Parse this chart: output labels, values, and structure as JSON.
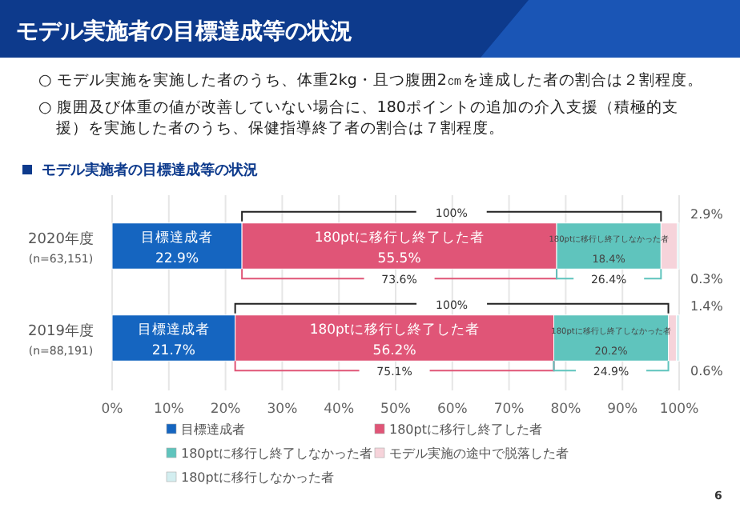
{
  "chart_data": {
    "type": "bar",
    "orientation": "horizontal",
    "stacked": true,
    "title": "モデル実施者の目標達成等の状況",
    "subtitle": "モデル実施者の目標達成等の状況",
    "categories": [
      "2020年度\n(n=63,151)",
      "2019年度\n(n=88,191)"
    ],
    "series": [
      {
        "name": "目標達成者",
        "color": "#1565c0",
        "values": [
          22.9,
          21.7
        ],
        "value_labels": [
          "22.9%",
          "21.7%"
        ]
      },
      {
        "name": "180ptに移行し終了した者",
        "color": "#e05577",
        "values": [
          55.5,
          56.2
        ],
        "value_labels": [
          "55.5%",
          "56.2%"
        ]
      },
      {
        "name": "180ptに移行し終了しなかった者",
        "color": "#5fc4bd",
        "values": [
          18.4,
          20.2
        ],
        "value_labels": [
          "18.4%",
          "20.2%"
        ]
      },
      {
        "name": "モデル実施の途中で脱落した者",
        "color": "#f6d3da",
        "values": [
          2.9,
          1.4
        ],
        "value_labels": [
          "2.9%",
          "1.4%"
        ]
      },
      {
        "name": "180ptに移行しなかった者",
        "color": "#d3eef0",
        "values": [
          0.3,
          0.6
        ],
        "value_labels": [
          "0.3%",
          "0.6%"
        ]
      }
    ],
    "xlim": [
      0,
      100
    ],
    "xticks": [
      {
        "value": 0,
        "label": "0%"
      },
      {
        "value": 10,
        "label": "10%"
      },
      {
        "value": 20,
        "label": "20%"
      },
      {
        "value": 30,
        "label": "30%"
      },
      {
        "value": 40,
        "label": "40%"
      },
      {
        "value": 50,
        "label": "50%"
      },
      {
        "value": 60,
        "label": "60%"
      },
      {
        "value": 70,
        "label": "70%"
      },
      {
        "value": 80,
        "label": "80%"
      },
      {
        "value": 90,
        "label": "90%"
      },
      {
        "value": 100,
        "label": "100%"
      }
    ],
    "grid": "x",
    "legend": "bottom",
    "annotations": [
      "○ モデル実施を実施した者のうち、体重2kg・且つ腹囲2㎝を達成した者の割合は２割程度。",
      "○ 腹囲及び体重の値が改善していない場合に、180ポイントの追加の介入支援（積極的支援）を実施した者のうち、保健指導終了者の割合は７割程度。",
      "100%",
      "73.6%",
      "26.4%",
      "100%",
      "75.1%",
      "24.9%",
      "6"
    ]
  }
}
